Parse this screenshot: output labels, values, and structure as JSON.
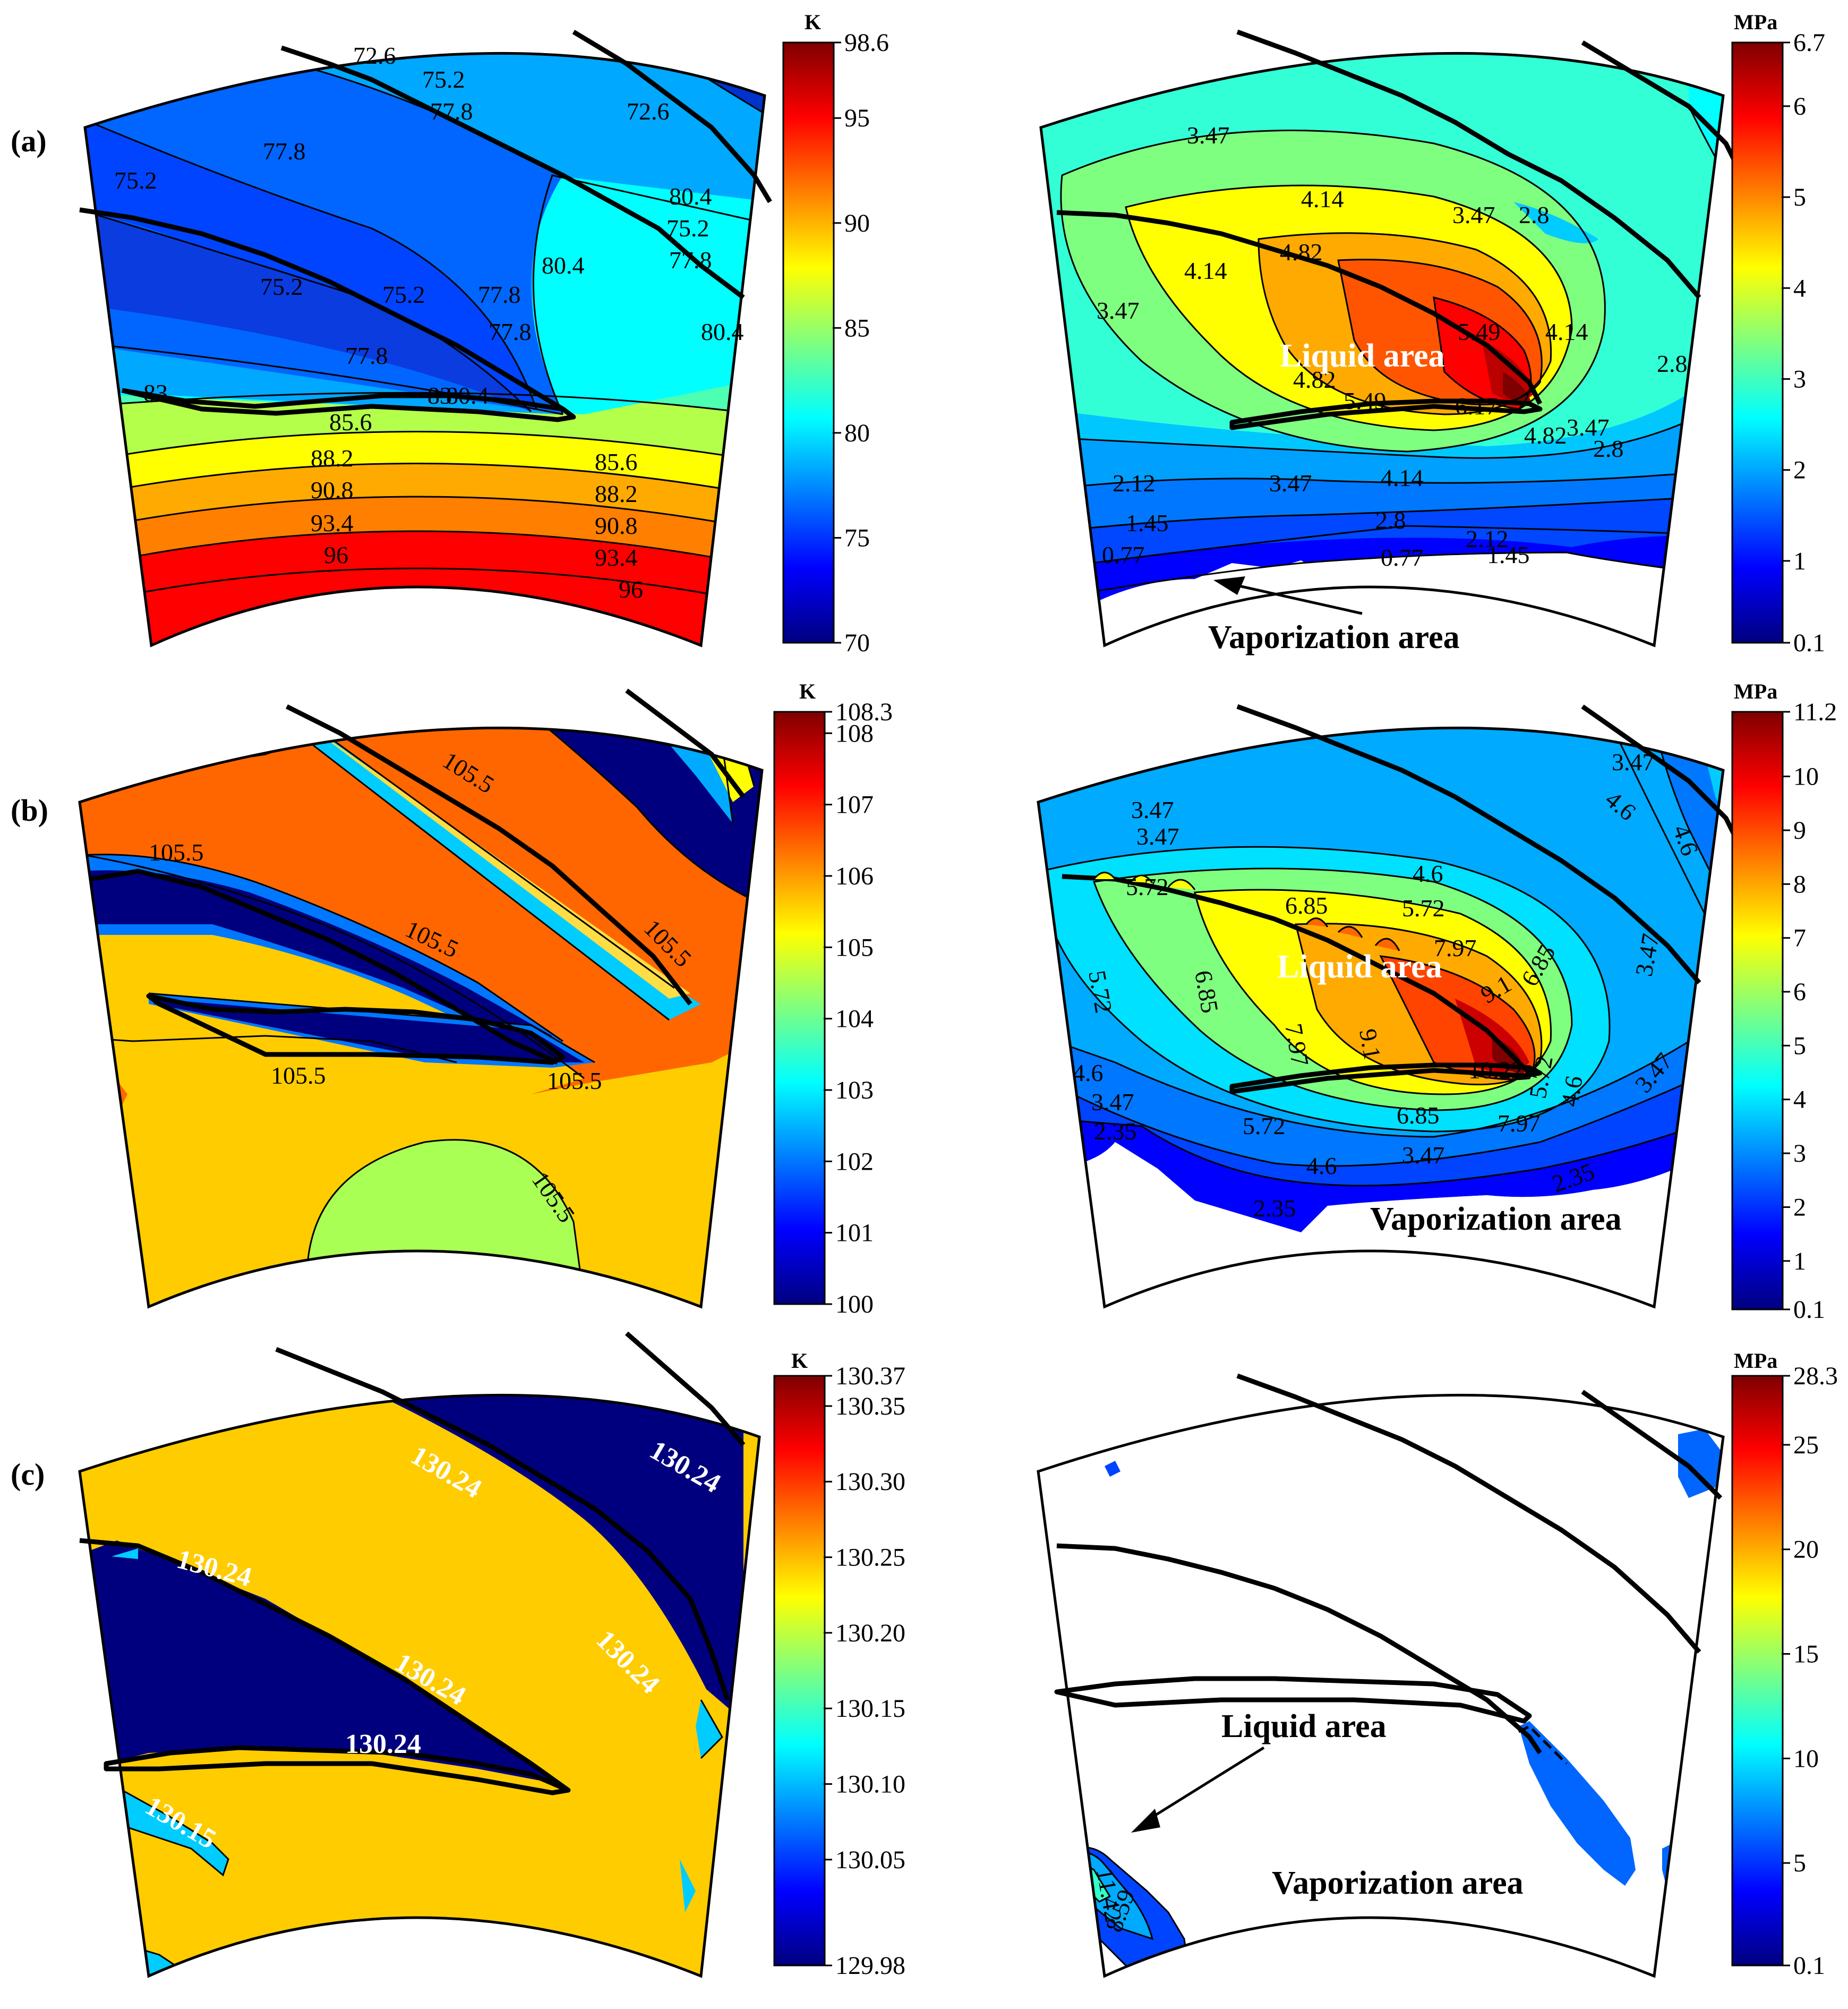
{
  "colors": {
    "jet": [
      "#00007f",
      "#0000ff",
      "#007fff",
      "#00ffff",
      "#7fff7f",
      "#ffff00",
      "#ff7f00",
      "#ff0000",
      "#7f0000"
    ]
  },
  "chart_data": [
    {
      "type": "contour",
      "panel": "(a)",
      "quantity": "temperature",
      "unit": "K",
      "range": [
        70,
        98.6
      ],
      "colorbar_ticks": [
        98.6,
        95,
        90,
        85,
        80,
        75,
        70
      ],
      "contour_levels": [
        72.6,
        75.2,
        77.8,
        80.4,
        83,
        85.6,
        88.2,
        90.8,
        93.4,
        96
      ]
    },
    {
      "type": "contour",
      "panel": "(a)",
      "quantity": "pressure",
      "unit": "MPa",
      "range": [
        0.1,
        6.7
      ],
      "colorbar_ticks": [
        6.7,
        6,
        5,
        4,
        3,
        2,
        1,
        0.1
      ],
      "contour_levels": [
        0.77,
        1.45,
        2.12,
        2.8,
        3.47,
        4.14,
        4.82,
        5.49,
        6.17
      ],
      "annotations": [
        "Liquid area",
        "Vaporization area"
      ]
    },
    {
      "type": "contour",
      "panel": "(b)",
      "quantity": "temperature",
      "unit": "K",
      "range": [
        100,
        108.3
      ],
      "colorbar_ticks": [
        108.3,
        108,
        107,
        106,
        105,
        104,
        103,
        102,
        101,
        100
      ],
      "contour_levels": [
        105.5
      ]
    },
    {
      "type": "contour",
      "panel": "(b)",
      "quantity": "pressure",
      "unit": "MPa",
      "range": [
        0.1,
        11.2
      ],
      "colorbar_ticks": [
        11.2,
        10,
        9,
        8,
        7,
        6,
        5,
        4,
        3,
        2,
        1,
        0.1
      ],
      "contour_levels": [
        2.35,
        3.47,
        4.6,
        5.72,
        6.85,
        7.97,
        9.1,
        10.22
      ],
      "annotations": [
        "Liquid area",
        "Vaporization area"
      ]
    },
    {
      "type": "contour",
      "panel": "(c)",
      "quantity": "temperature",
      "unit": "K",
      "range": [
        129.98,
        130.37
      ],
      "colorbar_ticks": [
        "130.37",
        "130.35",
        "130.30",
        "130.25",
        "130.20",
        "130.15",
        "130.10",
        "130.05",
        "129.98"
      ],
      "contour_levels": [
        130.15,
        130.24
      ]
    },
    {
      "type": "contour",
      "panel": "(c)",
      "quantity": "pressure",
      "unit": "MPa",
      "range": [
        0.1,
        28.3
      ],
      "colorbar_ticks": [
        28.3,
        25,
        20,
        15,
        10,
        5,
        0.1
      ],
      "contour_levels": [
        8.59,
        11.42
      ],
      "annotations": [
        "Liquid area",
        "Vaporization area"
      ]
    }
  ],
  "panels": {
    "a": {
      "label": "(a)",
      "left": {
        "unit": "K",
        "ticks": [
          "98.6",
          "95",
          "90",
          "85",
          "80",
          "75",
          "70"
        ],
        "labels": [
          "72.6",
          "75.2",
          "77.8",
          "72.6",
          "75.2",
          "77.8",
          "80.4",
          "75.2",
          "75.2",
          "77.8",
          "80.4",
          "77.8",
          "80.4",
          "83",
          "80.4",
          "85.6",
          "88.2",
          "85.6",
          "90.8",
          "88.2",
          "93.4",
          "90.8",
          "96",
          "93.4",
          "96",
          "75.2",
          "77.8",
          "77.8",
          "83"
        ]
      },
      "right": {
        "unit": "MPa",
        "ticks": [
          "6.7",
          "6",
          "5",
          "4",
          "3",
          "2",
          "1",
          "0.1"
        ],
        "labels": [
          "3.47",
          "4.14",
          "3.47",
          "4.82",
          "4.14",
          "3.47",
          "5.49",
          "4.14",
          "4.82",
          "5.49",
          "6.17",
          "4.82",
          "3.47",
          "2.12",
          "3.47",
          "4.14",
          "1.45",
          "2.8",
          "0.77",
          "2.12",
          "0.77",
          "1.45",
          "2.8",
          "2.8",
          "2.8"
        ],
        "liquid": "Liquid area",
        "vapor": "Vaporization area"
      }
    },
    "b": {
      "label": "(b)",
      "left": {
        "unit": "K",
        "ticks": [
          "108.3",
          "108",
          "107",
          "106",
          "105",
          "104",
          "103",
          "102",
          "101",
          "100"
        ],
        "labels": [
          "105.5",
          "105.5",
          "105.5",
          "105.5",
          "105.5",
          "105.5",
          "105.5"
        ]
      },
      "right": {
        "unit": "MPa",
        "ticks": [
          "11.2",
          "10",
          "9",
          "8",
          "7",
          "6",
          "5",
          "4",
          "3",
          "2",
          "1",
          "0.1"
        ],
        "labels": [
          "3.47",
          "4.6",
          "3.47",
          "5.72",
          "6.85",
          "5.72",
          "4.6",
          "5.72",
          "6.85",
          "7.97",
          "9.1",
          "7.97",
          "9.1",
          "6.85",
          "10.22",
          "4.6",
          "3.47",
          "2.35",
          "5.72",
          "6.85",
          "7.97",
          "5.72",
          "4.6",
          "4.6",
          "3.47",
          "3.47",
          "2.35",
          "2.35",
          "3.47",
          "4.6",
          "3.47"
        ],
        "liquid": "Liquid area",
        "vapor": "Vaporization area"
      }
    },
    "c": {
      "label": "(c)",
      "left": {
        "unit": "K",
        "ticks": [
          "130.37",
          "130.35",
          "130.30",
          "130.25",
          "130.20",
          "130.15",
          "130.10",
          "130.05",
          "129.98"
        ],
        "labels": [
          "130.24",
          "130.24",
          "130.24",
          "130.24",
          "130.24",
          "130.24",
          "130.15"
        ]
      },
      "right": {
        "unit": "MPa",
        "ticks": [
          "28.3",
          "25",
          "20",
          "15",
          "10",
          "5",
          "0.1"
        ],
        "labels": [
          "11.42",
          "8.59"
        ],
        "liquid": "Liquid area",
        "vapor": "Vaporization area"
      }
    }
  }
}
